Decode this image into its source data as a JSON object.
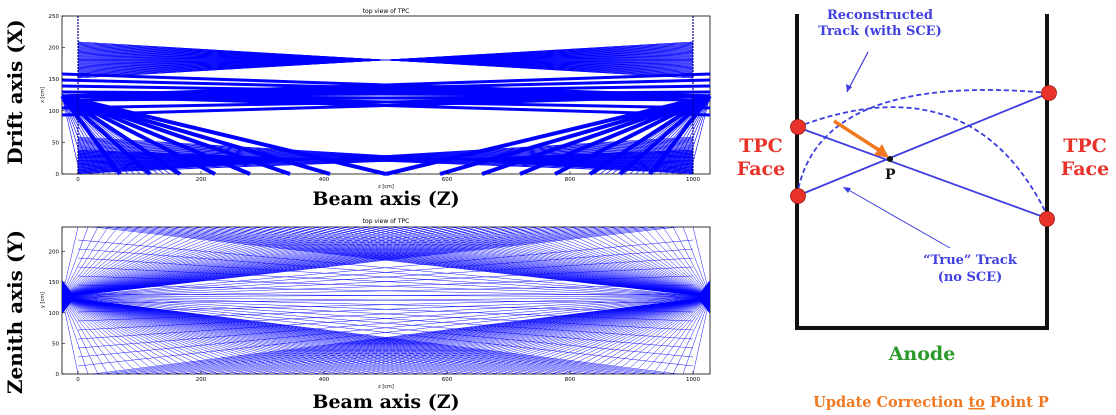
{
  "top_panel": {
    "title": "top view of TPC",
    "ylabel_small": "x [cm]",
    "xlabel_small": "z [cm]",
    "x_ticks": [
      "0",
      "200",
      "400",
      "600",
      "800",
      "1000"
    ],
    "y_ticks": [
      "0",
      "50",
      "100",
      "150",
      "200",
      "250"
    ],
    "side_label": "Drift axis (X)",
    "bottom_label": "Beam axis (Z)"
  },
  "bottom_panel": {
    "title": "top view of TPC",
    "ylabel_small": "y [cm]",
    "xlabel_small": "z [cm]",
    "x_ticks": [
      "0",
      "200",
      "400",
      "600",
      "800",
      "1000"
    ],
    "y_ticks": [
      "0",
      "50",
      "100",
      "150",
      "200"
    ],
    "side_label": "Zenith axis (Y)",
    "bottom_label": "Beam axis (Z)"
  },
  "diagram": {
    "reco_label_line1": "Reconstructed",
    "reco_label_line2": "Track (with SCE)",
    "true_label_line1": "“True” Track",
    "true_label_line2": "(no SCE)",
    "point_label": "P",
    "left_face_line1": "TPC",
    "left_face_line2": "Face",
    "right_face_line1": "TPC",
    "right_face_line2": "Face",
    "anode_label": "Anode",
    "update_label_pre": "Update Correction ",
    "update_label_to": "to",
    "update_label_post": " Point P",
    "colors": {
      "track_blue": "#3c3ce0",
      "label_blue": "#4040e0",
      "red": "#e8322a",
      "orange": "#f07820",
      "green": "#2a9a2a",
      "plot_blue": "#0000ff"
    }
  }
}
